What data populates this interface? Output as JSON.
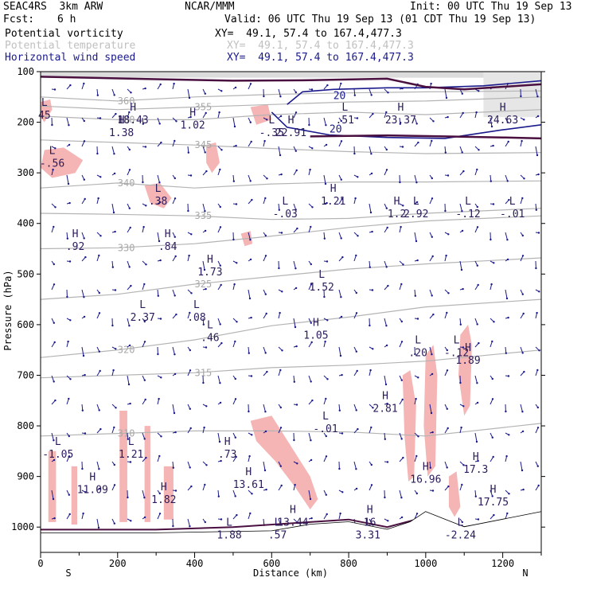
{
  "header": {
    "model": "SEAC4RS  3km ARW",
    "org": "NCAR/MMM",
    "init": "Init: 00 UTC Thu 19 Sep 13",
    "fcst_label": "Fcst:",
    "fcst_value": "6 h",
    "valid": "Valid: 06 UTC Thu 19 Sep 13 (01 CDT Thu 19 Sep 13)",
    "fields": [
      {
        "name": "Potential vorticity",
        "xy": "XY=  49.1, 57.4 to 167.4,477.3",
        "color": "#4a1040"
      },
      {
        "name": "Potential temperature",
        "xy": "XY=  49.1, 57.4 to 167.4,477.3",
        "color": "#c0c0c0"
      },
      {
        "name": "Horizontal wind speed",
        "xy": "XY=  49.1, 57.4 to 167.4,477.3",
        "color": "#1a1a8c"
      }
    ]
  },
  "chart_data": {
    "type": "cross-section",
    "xlabel": "Distance (km)",
    "ylabel": "Pressure (hPa)",
    "xlim": [
      0,
      1300
    ],
    "ylim": [
      1050,
      100
    ],
    "x_ticks": [
      0,
      200,
      400,
      600,
      800,
      1000,
      1200
    ],
    "y_ticks": [
      100,
      200,
      300,
      400,
      500,
      600,
      700,
      800,
      900,
      1000
    ],
    "x_end_labels": {
      "left": "S",
      "right": "N"
    },
    "colors": {
      "pv": "#4a1040",
      "theta": "#b4b4b4",
      "wind": "#1a1a8c",
      "shade": "#f5b5b5"
    },
    "theta_contours": [
      {
        "label": "360",
        "points": [
          [
            0,
            150
          ],
          [
            200,
            158
          ],
          [
            400,
            150
          ],
          [
            600,
            145
          ],
          [
            800,
            142
          ],
          [
            1000,
            140
          ],
          [
            1300,
            138
          ]
        ]
      },
      {
        "label": "355",
        "points": [
          [
            0,
            168
          ],
          [
            200,
            175
          ],
          [
            400,
            170
          ],
          [
            600,
            165
          ],
          [
            800,
            160
          ],
          [
            1000,
            158
          ],
          [
            1300,
            150
          ]
        ]
      },
      {
        "label": "350",
        "points": [
          [
            0,
            188
          ],
          [
            200,
            195
          ],
          [
            400,
            195
          ],
          [
            600,
            185
          ],
          [
            800,
            180
          ],
          [
            1000,
            185
          ],
          [
            1300,
            175
          ]
        ]
      },
      {
        "label": "345",
        "points": [
          [
            0,
            235
          ],
          [
            200,
            240
          ],
          [
            400,
            245
          ],
          [
            600,
            252
          ],
          [
            800,
            258
          ],
          [
            1000,
            262
          ],
          [
            1300,
            260
          ]
        ]
      },
      {
        "label": "340",
        "points": [
          [
            0,
            330
          ],
          [
            200,
            320
          ],
          [
            400,
            330
          ],
          [
            600,
            322
          ],
          [
            800,
            318
          ],
          [
            1000,
            318
          ],
          [
            1300,
            316
          ]
        ]
      },
      {
        "label": "335",
        "points": [
          [
            0,
            380
          ],
          [
            200,
            382
          ],
          [
            400,
            385
          ],
          [
            600,
            392
          ],
          [
            800,
            390
          ],
          [
            1000,
            380
          ],
          [
            1300,
            370
          ]
        ]
      },
      {
        "label": "330",
        "points": [
          [
            0,
            450
          ],
          [
            200,
            448
          ],
          [
            400,
            440
          ],
          [
            600,
            425
          ],
          [
            800,
            408
          ],
          [
            1000,
            395
          ],
          [
            1300,
            385
          ]
        ]
      },
      {
        "label": "325",
        "points": [
          [
            0,
            550
          ],
          [
            200,
            540
          ],
          [
            400,
            520
          ],
          [
            600,
            505
          ],
          [
            800,
            490
          ],
          [
            1000,
            480
          ],
          [
            1300,
            468
          ]
        ]
      },
      {
        "label": "320",
        "points": [
          [
            0,
            665
          ],
          [
            200,
            650
          ],
          [
            400,
            630
          ],
          [
            600,
            602
          ],
          [
            800,
            585
          ],
          [
            1000,
            565
          ],
          [
            1300,
            550
          ]
        ]
      },
      {
        "label": "315",
        "points": [
          [
            0,
            705
          ],
          [
            200,
            700
          ],
          [
            400,
            695
          ],
          [
            600,
            685
          ],
          [
            800,
            680
          ],
          [
            1000,
            672
          ],
          [
            1300,
            650
          ]
        ]
      },
      {
        "label": "310",
        "points": [
          [
            0,
            820
          ],
          [
            200,
            815
          ],
          [
            400,
            810
          ],
          [
            600,
            810
          ],
          [
            800,
            812
          ],
          [
            1000,
            820
          ],
          [
            1300,
            795
          ]
        ]
      }
    ],
    "wind_isotachs": [
      {
        "label": "20",
        "points": [
          [
            640,
            165
          ],
          [
            680,
            140
          ],
          [
            760,
            135
          ],
          [
            900,
            132
          ],
          [
            1000,
            132
          ],
          [
            1150,
            128
          ],
          [
            1300,
            118
          ]
        ]
      },
      {
        "label": "20",
        "points": [
          [
            600,
            180
          ],
          [
            640,
            210
          ],
          [
            750,
            225
          ],
          [
            900,
            230
          ],
          [
            1050,
            232
          ],
          [
            1200,
            215
          ],
          [
            1300,
            205
          ]
        ]
      }
    ],
    "pv_extrema": [
      {
        "type": "L",
        "value": "45",
        "x": 10,
        "p": 180
      },
      {
        "type": "H",
        "value": "18.43",
        "x": 240,
        "p": 190
      },
      {
        "type": "H",
        "value": "1.38",
        "x": 210,
        "p": 215
      },
      {
        "type": "H",
        "value": "1.02",
        "x": 395,
        "p": 200
      },
      {
        "type": "L",
        "value": "-.35",
        "x": 600,
        "p": 215
      },
      {
        "type": "H",
        "value": "22.91",
        "x": 650,
        "p": 215
      },
      {
        "type": "L",
        "value": ".51",
        "x": 790,
        "p": 190
      },
      {
        "type": "H",
        "value": "23.37",
        "x": 935,
        "p": 190
      },
      {
        "type": "H",
        "value": "24.63",
        "x": 1200,
        "p": 190
      },
      {
        "type": "L",
        "value": "-.56",
        "x": 30,
        "p": 275
      },
      {
        "type": "L",
        "value": ".38",
        "x": 305,
        "p": 350
      },
      {
        "type": "H",
        "value": "1.21",
        "x": 760,
        "p": 350
      },
      {
        "type": "L",
        "value": "-.03",
        "x": 635,
        "p": 375
      },
      {
        "type": "H",
        "value": "1.2",
        "x": 925,
        "p": 375
      },
      {
        "type": "L",
        "value": "2.92",
        "x": 975,
        "p": 375
      },
      {
        "type": "L",
        "value": "-.12",
        "x": 1110,
        "p": 375
      },
      {
        "type": "L",
        "value": "-.01",
        "x": 1225,
        "p": 375
      },
      {
        "type": "H",
        "value": ".92",
        "x": 90,
        "p": 440
      },
      {
        "type": "H",
        "value": ".84",
        "x": 330,
        "p": 440
      },
      {
        "type": "H",
        "value": "1.73",
        "x": 440,
        "p": 490
      },
      {
        "type": "L",
        "value": "1.52",
        "x": 730,
        "p": 520
      },
      {
        "type": "L",
        "value": "2.37",
        "x": 265,
        "p": 580
      },
      {
        "type": "L",
        "value": ".08",
        "x": 405,
        "p": 580
      },
      {
        "type": "H",
        "value": "1.05",
        "x": 715,
        "p": 615
      },
      {
        "type": "L",
        "value": ".46",
        "x": 440,
        "p": 620
      },
      {
        "type": "L",
        "value": ".20",
        "x": 980,
        "p": 650
      },
      {
        "type": "L",
        "value": "-.12",
        "x": 1080,
        "p": 650
      },
      {
        "type": "H",
        "value": "1.89",
        "x": 1110,
        "p": 665
      },
      {
        "type": "H",
        "value": "2.81",
        "x": 895,
        "p": 760
      },
      {
        "type": "L",
        "value": "-.01",
        "x": 740,
        "p": 800
      },
      {
        "type": "L",
        "value": "-1.05",
        "x": 45,
        "p": 850
      },
      {
        "type": "L",
        "value": "1.21",
        "x": 235,
        "p": 850
      },
      {
        "type": "H",
        "value": ".73",
        "x": 485,
        "p": 850
      },
      {
        "type": "H",
        "value": "17.3",
        "x": 1130,
        "p": 880
      },
      {
        "type": "H",
        "value": "16.96",
        "x": 1000,
        "p": 900
      },
      {
        "type": "H",
        "value": "11.09",
        "x": 135,
        "p": 920
      },
      {
        "type": "H",
        "value": "13.61",
        "x": 540,
        "p": 910
      },
      {
        "type": "H",
        "value": "1.82",
        "x": 320,
        "p": 940
      },
      {
        "type": "H",
        "value": "17.75",
        "x": 1175,
        "p": 945
      },
      {
        "type": "H",
        "value": "13.44",
        "x": 655,
        "p": 985
      },
      {
        "type": "H",
        "value": "16",
        "x": 855,
        "p": 985
      },
      {
        "type": "L",
        "value": "1.88",
        "x": 490,
        "p": 1010
      },
      {
        "type": "L",
        "value": ".57",
        "x": 615,
        "p": 1010
      },
      {
        "type": "L",
        "value": "3.31",
        "x": 850,
        "p": 1010
      },
      {
        "type": "L",
        "value": "-2.24",
        "x": 1090,
        "p": 1010
      }
    ],
    "shaded_pv_regions": [
      {
        "points": [
          [
            0,
            160
          ],
          [
            25,
            155
          ],
          [
            30,
            175
          ],
          [
            10,
            200
          ],
          [
            0,
            190
          ]
        ]
      },
      {
        "points": [
          [
            10,
            255
          ],
          [
            60,
            250
          ],
          [
            110,
            275
          ],
          [
            90,
            300
          ],
          [
            30,
            310
          ],
          [
            0,
            290
          ]
        ]
      },
      {
        "points": [
          [
            270,
            325
          ],
          [
            310,
            320
          ],
          [
            340,
            350
          ],
          [
            320,
            370
          ],
          [
            285,
            360
          ]
        ]
      },
      {
        "points": [
          [
            430,
            245
          ],
          [
            455,
            240
          ],
          [
            465,
            280
          ],
          [
            445,
            300
          ],
          [
            430,
            280
          ]
        ]
      },
      {
        "points": [
          [
            520,
            420
          ],
          [
            545,
            415
          ],
          [
            550,
            440
          ],
          [
            530,
            445
          ]
        ]
      },
      {
        "points": [
          [
            545,
            170
          ],
          [
            590,
            165
          ],
          [
            600,
            195
          ],
          [
            560,
            205
          ]
        ]
      },
      {
        "points": [
          [
            545,
            790
          ],
          [
            600,
            780
          ],
          [
            650,
            840
          ],
          [
            700,
            900
          ],
          [
            720,
            945
          ],
          [
            700,
            965
          ],
          [
            660,
            920
          ],
          [
            610,
            870
          ],
          [
            560,
            830
          ]
        ]
      },
      {
        "points": [
          [
            20,
            850
          ],
          [
            40,
            850
          ],
          [
            40,
            990
          ],
          [
            20,
            990
          ]
        ]
      },
      {
        "points": [
          [
            80,
            880
          ],
          [
            95,
            880
          ],
          [
            95,
            995
          ],
          [
            80,
            995
          ]
        ]
      },
      {
        "points": [
          [
            205,
            770
          ],
          [
            225,
            770
          ],
          [
            225,
            990
          ],
          [
            205,
            990
          ]
        ]
      },
      {
        "points": [
          [
            270,
            800
          ],
          [
            285,
            800
          ],
          [
            285,
            990
          ],
          [
            270,
            990
          ]
        ]
      },
      {
        "points": [
          [
            320,
            880
          ],
          [
            345,
            880
          ],
          [
            345,
            985
          ],
          [
            320,
            985
          ]
        ]
      },
      {
        "points": [
          [
            940,
            700
          ],
          [
            960,
            690
          ],
          [
            975,
            760
          ],
          [
            970,
            900
          ],
          [
            955,
            910
          ],
          [
            945,
            820
          ]
        ]
      },
      {
        "points": [
          [
            1000,
            660
          ],
          [
            1020,
            640
          ],
          [
            1030,
            700
          ],
          [
            1025,
            880
          ],
          [
            1005,
            900
          ],
          [
            995,
            800
          ]
        ]
      },
      {
        "points": [
          [
            1090,
            620
          ],
          [
            1110,
            600
          ],
          [
            1120,
            640
          ],
          [
            1115,
            760
          ],
          [
            1100,
            780
          ],
          [
            1085,
            700
          ]
        ]
      },
      {
        "points": [
          [
            1060,
            900
          ],
          [
            1080,
            890
          ],
          [
            1090,
            960
          ],
          [
            1075,
            980
          ],
          [
            1060,
            960
          ]
        ]
      }
    ],
    "pv_lines": [
      {
        "points": [
          [
            0,
            110
          ],
          [
            300,
            115
          ],
          [
            500,
            118
          ],
          [
            700,
            117
          ],
          [
            900,
            114
          ],
          [
            1000,
            130
          ],
          [
            1100,
            135
          ],
          [
            1300,
            125
          ]
        ],
        "width": 2.5
      },
      {
        "points": [
          [
            700,
            228
          ],
          [
            900,
            226
          ],
          [
            1050,
            228
          ],
          [
            1200,
            230
          ],
          [
            1300,
            232
          ]
        ],
        "width": 2.5
      },
      {
        "points": [
          [
            0,
            1005
          ],
          [
            300,
            1005
          ],
          [
            500,
            1000
          ],
          [
            700,
            990
          ],
          [
            800,
            985
          ],
          [
            900,
            1000
          ],
          [
            1000,
            980
          ],
          [
            1100,
            1000
          ],
          [
            1300,
            975
          ]
        ],
        "width": 2
      }
    ],
    "surface_pressure": [
      [
        0,
        1012
      ],
      [
        300,
        1012
      ],
      [
        600,
        1008
      ],
      [
        700,
        995
      ],
      [
        800,
        990
      ],
      [
        900,
        1005
      ],
      [
        960,
        990
      ],
      [
        1000,
        970
      ],
      [
        1050,
        985
      ],
      [
        1100,
        1000
      ],
      [
        1200,
        985
      ],
      [
        1300,
        970
      ]
    ]
  }
}
